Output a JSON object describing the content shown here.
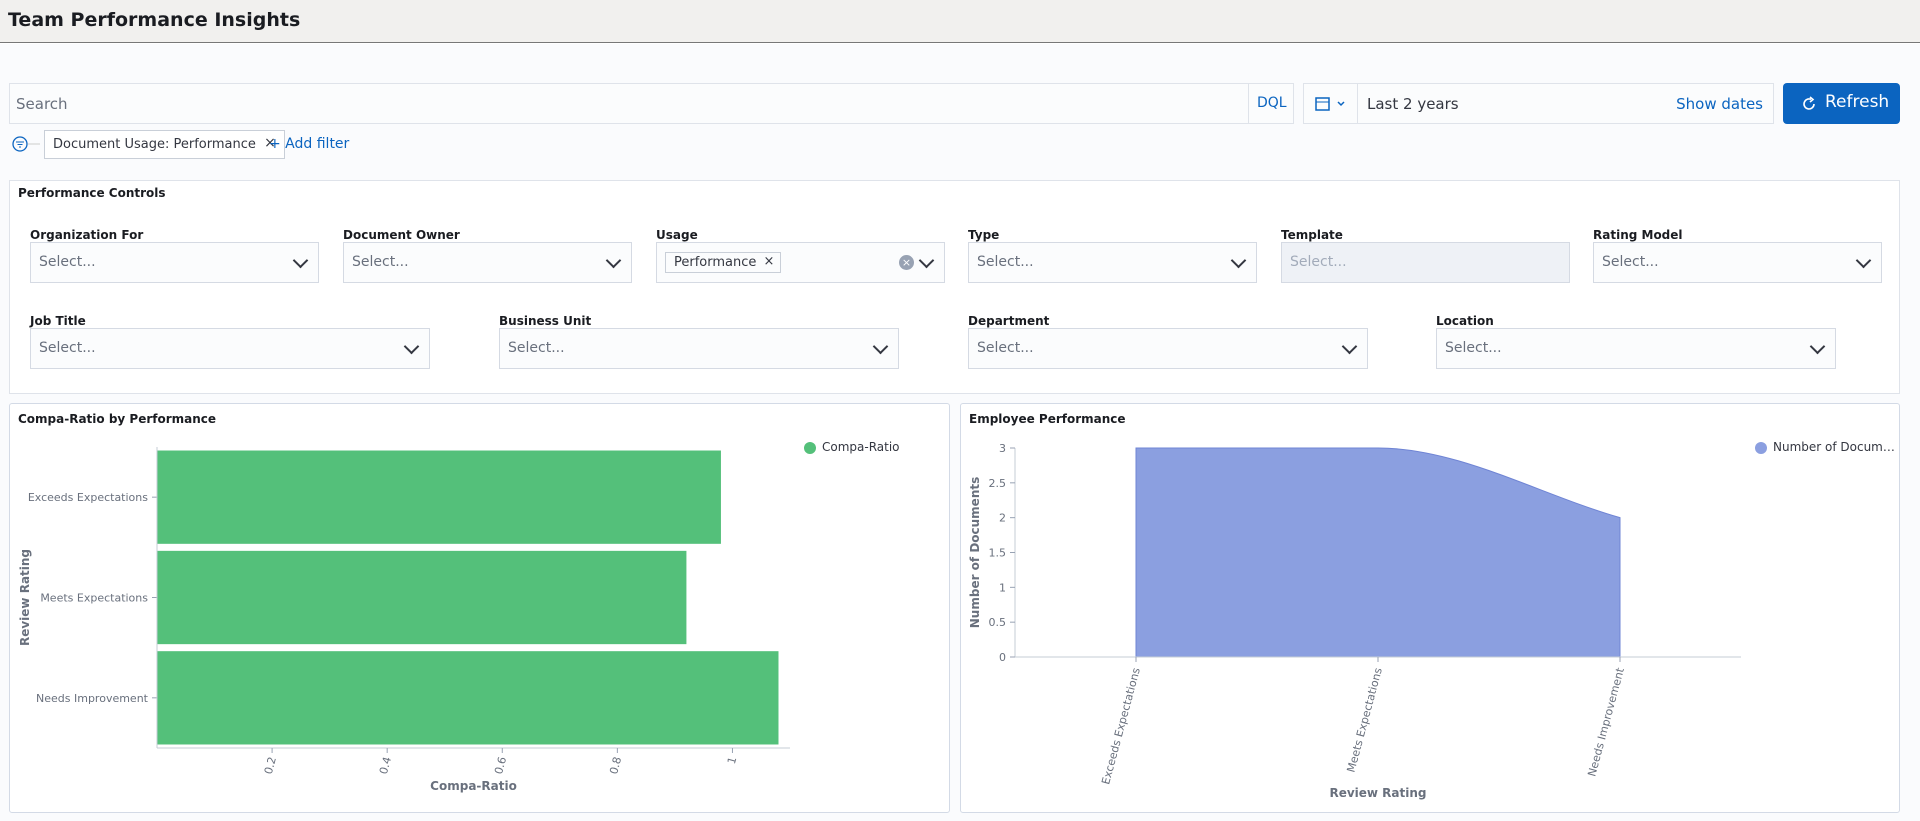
{
  "header": {
    "title": "Team Performance Insights"
  },
  "query_bar": {
    "placeholder": "Search",
    "language": "DQL",
    "time_range": "Last 2 years",
    "show_dates": "Show dates",
    "refresh": "Refresh"
  },
  "filters": {
    "pills": [
      "Document Usage: Performance"
    ],
    "add": "+ Add filter"
  },
  "controls": {
    "title": "Performance Controls",
    "rows": [
      [
        {
          "label": "Organization For",
          "placeholder": "Select..."
        },
        {
          "label": "Document Owner",
          "placeholder": "Select..."
        },
        {
          "label": "Usage",
          "chips": [
            "Performance"
          ]
        },
        {
          "label": "Type",
          "placeholder": "Select..."
        },
        {
          "label": "Template",
          "placeholder": "Select...",
          "disabled": true
        },
        {
          "label": "Rating Model",
          "placeholder": "Select..."
        }
      ],
      [
        {
          "label": "Job Title",
          "placeholder": "Select..."
        },
        {
          "label": "Business Unit",
          "placeholder": "Select..."
        },
        {
          "label": "Department",
          "placeholder": "Select..."
        },
        {
          "label": "Location",
          "placeholder": "Select..."
        }
      ]
    ]
  },
  "charts": [
    {
      "type": "bar",
      "orientation": "horizontal",
      "title": "Compa-Ratio by Performance",
      "categories": [
        "Exceeds Expectations",
        "Meets Expectations",
        "Needs Improvement"
      ],
      "series": [
        {
          "name": "Compa-Ratio",
          "color": "#54c07a",
          "values": [
            0.98,
            0.92,
            1.08
          ]
        }
      ],
      "xlim": [
        0,
        1.1
      ],
      "xticks": [
        0.2,
        0.4,
        0.6,
        0.8,
        1
      ],
      "x_label": "Compa-Ratio",
      "y_label": "Review Rating",
      "legend": "top-right"
    },
    {
      "type": "area",
      "title": "Employee Performance",
      "categories": [
        "Exceeds Expectations",
        "Meets Expectations",
        "Needs Improvement"
      ],
      "series": [
        {
          "name": "Number of Documents",
          "color": "#8b9fe0",
          "values": [
            3,
            3,
            2
          ]
        }
      ],
      "ylim": [
        0,
        3
      ],
      "yticks": [
        0,
        0.5,
        1,
        1.5,
        2,
        2.5,
        3
      ],
      "x_label": "Review Rating",
      "y_label": "Number of Documents",
      "legend": "top-right"
    }
  ]
}
